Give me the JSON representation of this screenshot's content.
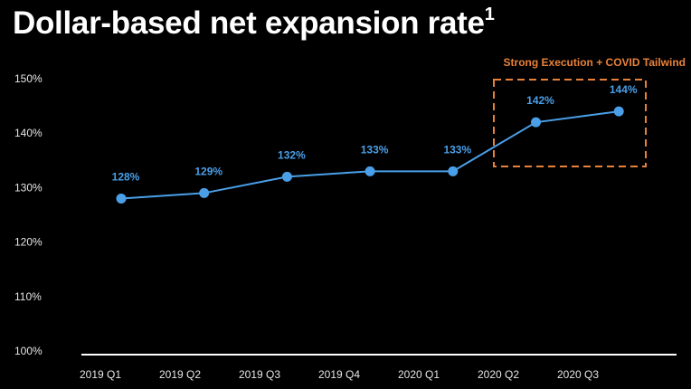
{
  "chart_data": {
    "type": "line",
    "title": "Dollar-based net expansion rate",
    "title_superscript": "1",
    "categories": [
      "2019 Q1",
      "2019 Q2",
      "2019 Q3",
      "2019 Q4",
      "2020 Q1",
      "2020 Q2",
      "2020 Q3"
    ],
    "series": [
      {
        "values": [
          128,
          129,
          132,
          133,
          133,
          142,
          144
        ],
        "labels": [
          "128%",
          "129%",
          "132%",
          "133%",
          "133%",
          "142%",
          "144%"
        ]
      }
    ],
    "y_ticks": [
      "100%",
      "110%",
      "120%",
      "130%",
      "140%",
      "150%"
    ],
    "ylim": [
      100,
      150
    ],
    "grid": false,
    "annotation": {
      "text": "Strong Execution + COVID Tailwind",
      "range": [
        "2020 Q2",
        "2020 Q3"
      ],
      "style": "dashed-box"
    },
    "colors": {
      "line": "#4a9fe8",
      "annotation": "#e8823a",
      "background": "#000000"
    }
  }
}
